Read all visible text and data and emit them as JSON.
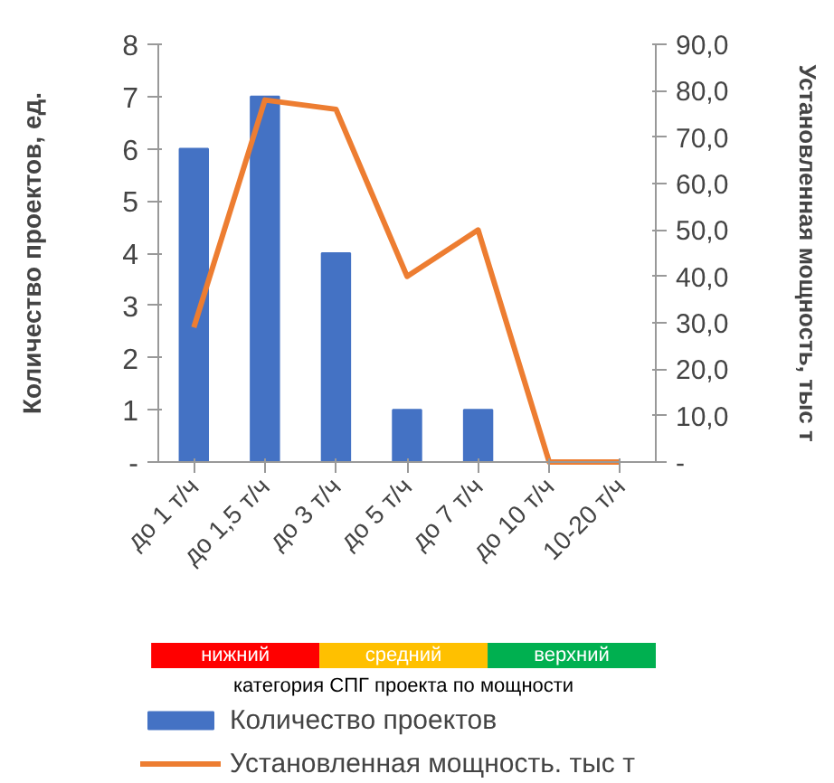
{
  "chart_data": [
    {
      "type": "bar",
      "categories": [
        "до 1 т/ч",
        "до 1,5 т/ч",
        "до 3 т/ч",
        "до 5 т/ч",
        "до 7 т/ч",
        "до 10 т/ч",
        "10-20 т/ч"
      ],
      "ylabel": "Количество проектов, ед.",
      "y2label": "Установленная мощность, тыс т",
      "series": [
        {
          "name": "Количество проектов",
          "color": "#4472c4",
          "values": [
            6,
            7,
            4,
            1,
            1,
            0,
            0
          ]
        },
        {
          "name": "Установленная мощность. тыс т",
          "type": "line",
          "axis": "y2",
          "color": "#ed7d31",
          "values": [
            29,
            78,
            76,
            40,
            50,
            0,
            0
          ]
        }
      ],
      "ylim": [
        0,
        8
      ],
      "yticks": [
        {
          "value": 0,
          "label": "-"
        },
        1,
        2,
        3,
        4,
        5,
        6,
        7,
        8
      ],
      "y2lim": [
        0,
        90
      ],
      "y2ticks": [
        {
          "value": 0,
          "label": "-"
        },
        {
          "value": 10,
          "label": "10,0"
        },
        {
          "value": 20,
          "label": "20,0"
        },
        {
          "value": 30,
          "label": "30,0"
        },
        {
          "value": 40,
          "label": "40,0"
        },
        {
          "value": 50,
          "label": "50,0"
        },
        {
          "value": 60,
          "label": "60,0"
        },
        {
          "value": 70,
          "label": "70,0"
        },
        {
          "value": 80,
          "label": "80,0"
        },
        {
          "value": 90,
          "label": "90,0"
        }
      ],
      "grid": false,
      "legend": "bottom"
    },
    {
      "type": "other",
      "categories": [
        "нижний",
        "средний",
        "верхний"
      ],
      "colors": [
        "#ff0000",
        "#ffc000",
        "#00b050"
      ],
      "xlabel": "категория СПГ проекта по мощности"
    }
  ]
}
